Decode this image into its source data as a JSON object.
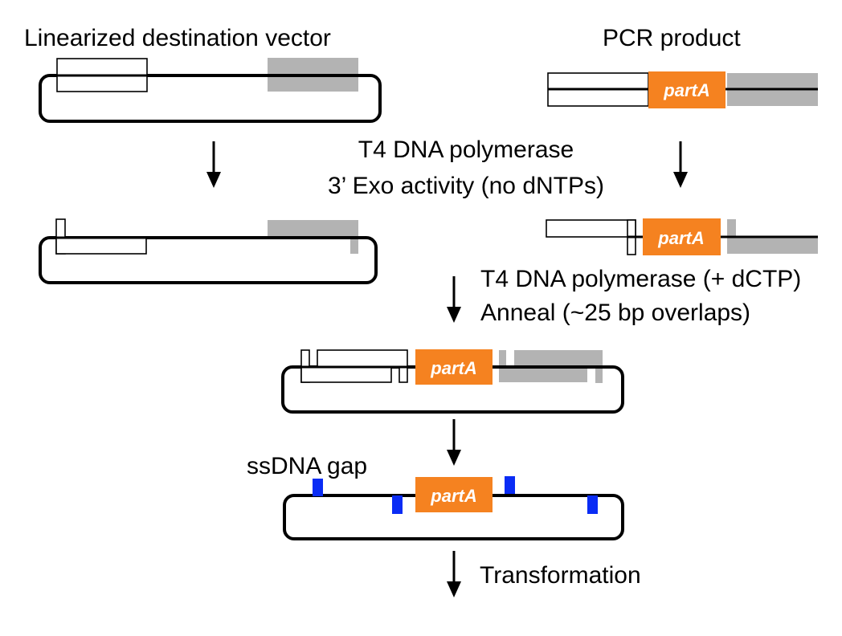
{
  "labels": {
    "vector": "Linearized destination vector",
    "pcr": "PCR product",
    "step1_line1": "T4 DNA polymerase",
    "step1_line2": "3’ Exo activity (no dNTPs)",
    "step2_line1": "T4 DNA polymerase (+ dCTP)",
    "step2_line2": "Anneal (~25 bp overlaps)",
    "gap": "ssDNA gap",
    "transformation": "Transformation"
  },
  "insert": {
    "name": "partA"
  },
  "colors": {
    "insert": "#f58220",
    "homology": "#b3b3b3",
    "gap": "#0a2cf5",
    "line": "#000000"
  }
}
